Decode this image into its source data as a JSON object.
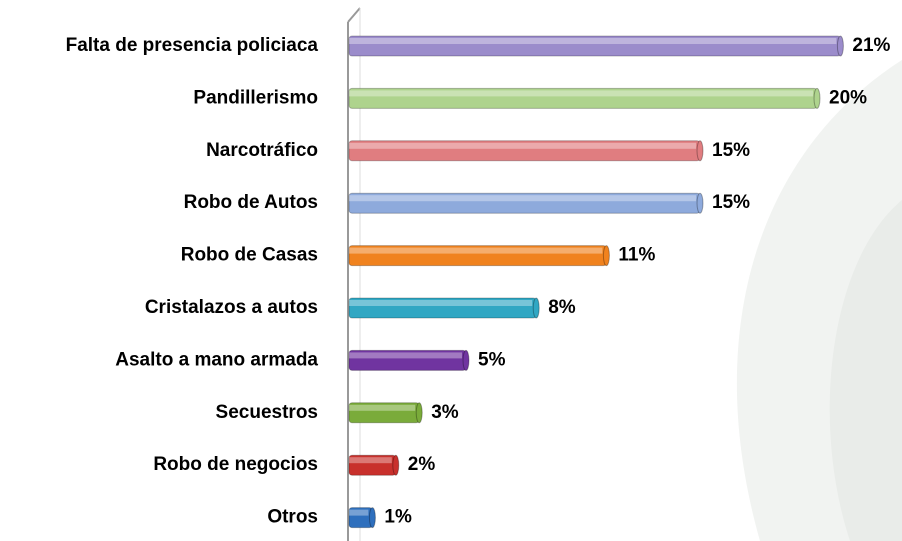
{
  "chart_data": {
    "type": "bar",
    "orientation": "horizontal",
    "categories": [
      "Falta de presencia policiaca",
      "Pandillerismo",
      "Narcotráfico",
      "Robo de Autos",
      "Robo de Casas",
      "Cristalazos a autos",
      "Asalto a mano armada",
      "Secuestros",
      "Robo de  negocios",
      "Otros"
    ],
    "values": [
      21,
      20,
      15,
      15,
      11,
      8,
      5,
      3,
      2,
      1
    ],
    "value_labels": [
      "21%",
      "20%",
      "15%",
      "15%",
      "11%",
      "8%",
      "5%",
      "3%",
      "2%",
      "1%"
    ],
    "colors": [
      "#9b8ccb",
      "#aed38d",
      "#e07d80",
      "#8eaadc",
      "#f0821e",
      "#31a7c3",
      "#7034a0",
      "#7aab3a",
      "#c8302c",
      "#2e6fbd"
    ]
  }
}
